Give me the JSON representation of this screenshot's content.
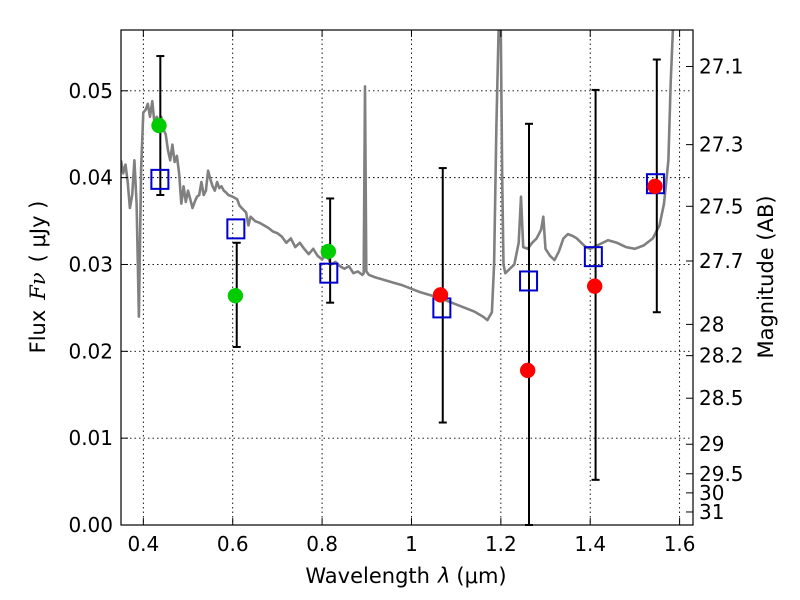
{
  "chart_data": {
    "type": "scatter",
    "title": "",
    "xlabel": "Wavelength",
    "xlabel_symbol": "λ",
    "xlabel_unit": "(μm)",
    "ylabel": "Flux",
    "ylabel_symbol": "Fν",
    "ylabel_unit": "( μJy )",
    "y2label": "Magnitude (AB)",
    "xlim": [
      0.35,
      1.63
    ],
    "ylim": [
      0.0,
      0.057
    ],
    "grid": true,
    "xticks": [
      0.4,
      0.6,
      0.8,
      1.0,
      1.2,
      1.4,
      1.6
    ],
    "xtick_labels": [
      "0.4",
      "0.6",
      "0.8",
      "1",
      "1.2",
      "1.4",
      "1.6"
    ],
    "yticks": [
      0.0,
      0.01,
      0.02,
      0.03,
      0.04,
      0.05
    ],
    "ytick_labels": [
      "0.00",
      "0.01",
      "0.02",
      "0.03",
      "0.04",
      "0.05"
    ],
    "y2ticks": [
      {
        "label": "27.1",
        "flux": 0.0528
      },
      {
        "label": "27.3",
        "flux": 0.0438
      },
      {
        "label": "27.5",
        "flux": 0.0367
      },
      {
        "label": "27.7",
        "flux": 0.0304
      },
      {
        "label": "28",
        "flux": 0.0231
      },
      {
        "label": "28.2",
        "flux": 0.0195
      },
      {
        "label": "28.5",
        "flux": 0.0146
      },
      {
        "label": "29",
        "flux": 0.0093
      },
      {
        "label": "29.5",
        "flux": 0.0059
      },
      {
        "label": "30",
        "flux": 0.0037
      },
      {
        "label": "31",
        "flux": 0.0015
      }
    ],
    "series": [
      {
        "name": "observed-optical",
        "marker": "circle",
        "color": "#00cc00",
        "points": [
          {
            "x": 0.435,
            "y": 0.046
          },
          {
            "x": 0.606,
            "y": 0.0264
          },
          {
            "x": 0.814,
            "y": 0.0315
          }
        ]
      },
      {
        "name": "observed-nir",
        "marker": "circle",
        "color": "#ff0000",
        "points": [
          {
            "x": 1.065,
            "y": 0.0265
          },
          {
            "x": 1.26,
            "y": 0.0178
          },
          {
            "x": 1.41,
            "y": 0.0275
          },
          {
            "x": 1.545,
            "y": 0.039
          }
        ]
      },
      {
        "name": "model-bandpass",
        "marker": "square-open",
        "color": "#0000cc",
        "points": [
          {
            "x": 0.437,
            "y": 0.0398
          },
          {
            "x": 0.607,
            "y": 0.0341
          },
          {
            "x": 0.815,
            "y": 0.029
          },
          {
            "x": 1.068,
            "y": 0.025
          },
          {
            "x": 1.262,
            "y": 0.0281
          },
          {
            "x": 1.407,
            "y": 0.0309
          },
          {
            "x": 1.546,
            "y": 0.0393
          }
        ]
      },
      {
        "name": "error-bars",
        "color": "#000000",
        "bars": [
          {
            "x": 0.438,
            "low": 0.038,
            "high": 0.054
          },
          {
            "x": 0.609,
            "low": 0.0205,
            "high": 0.0325
          },
          {
            "x": 0.818,
            "low": 0.0256,
            "high": 0.0376
          },
          {
            "x": 1.07,
            "low": 0.0118,
            "high": 0.0411
          },
          {
            "x": 1.263,
            "low": 0.0,
            "high": 0.0462
          },
          {
            "x": 1.412,
            "low": 0.0052,
            "high": 0.0501
          },
          {
            "x": 1.549,
            "low": 0.0245,
            "high": 0.0536
          }
        ]
      },
      {
        "name": "model-spectrum",
        "type": "line",
        "color": "#808080",
        "points": [
          [
            0.35,
            0.042
          ],
          [
            0.355,
            0.0405
          ],
          [
            0.36,
            0.0415
          ],
          [
            0.365,
            0.0395
          ],
          [
            0.37,
            0.0365
          ],
          [
            0.375,
            0.038
          ],
          [
            0.38,
            0.042
          ],
          [
            0.385,
            0.037
          ],
          [
            0.39,
            0.024
          ],
          [
            0.395,
            0.041
          ],
          [
            0.4,
            0.0475
          ],
          [
            0.405,
            0.0478
          ],
          [
            0.41,
            0.0485
          ],
          [
            0.415,
            0.047
          ],
          [
            0.42,
            0.0488
          ],
          [
            0.425,
            0.0462
          ],
          [
            0.43,
            0.047
          ],
          [
            0.435,
            0.0462
          ],
          [
            0.44,
            0.047
          ],
          [
            0.445,
            0.0455
          ],
          [
            0.45,
            0.045
          ],
          [
            0.455,
            0.0432
          ],
          [
            0.46,
            0.042
          ],
          [
            0.465,
            0.0438
          ],
          [
            0.47,
            0.0418
          ],
          [
            0.475,
            0.0425
          ],
          [
            0.48,
            0.0405
          ],
          [
            0.485,
            0.037
          ],
          [
            0.49,
            0.039
          ],
          [
            0.495,
            0.0372
          ],
          [
            0.5,
            0.0385
          ],
          [
            0.505,
            0.0375
          ],
          [
            0.51,
            0.0365
          ],
          [
            0.515,
            0.0372
          ],
          [
            0.52,
            0.0378
          ],
          [
            0.525,
            0.038
          ],
          [
            0.53,
            0.0395
          ],
          [
            0.535,
            0.038
          ],
          [
            0.54,
            0.0385
          ],
          [
            0.545,
            0.0408
          ],
          [
            0.55,
            0.0398
          ],
          [
            0.555,
            0.039
          ],
          [
            0.56,
            0.0385
          ],
          [
            0.565,
            0.0395
          ],
          [
            0.57,
            0.0388
          ],
          [
            0.575,
            0.039
          ],
          [
            0.58,
            0.0385
          ],
          [
            0.585,
            0.0383
          ],
          [
            0.59,
            0.038
          ],
          [
            0.6,
            0.0378
          ],
          [
            0.61,
            0.0375
          ],
          [
            0.615,
            0.0368
          ],
          [
            0.62,
            0.0365
          ],
          [
            0.63,
            0.036
          ],
          [
            0.635,
            0.0345
          ],
          [
            0.64,
            0.0355
          ],
          [
            0.65,
            0.035
          ],
          [
            0.66,
            0.0348
          ],
          [
            0.67,
            0.0345
          ],
          [
            0.68,
            0.0342
          ],
          [
            0.69,
            0.0338
          ],
          [
            0.7,
            0.0336
          ],
          [
            0.71,
            0.0332
          ],
          [
            0.72,
            0.0325
          ],
          [
            0.73,
            0.033
          ],
          [
            0.74,
            0.032
          ],
          [
            0.75,
            0.0325
          ],
          [
            0.76,
            0.0318
          ],
          [
            0.77,
            0.0312
          ],
          [
            0.78,
            0.0318
          ],
          [
            0.79,
            0.031
          ],
          [
            0.8,
            0.0306
          ],
          [
            0.81,
            0.0312
          ],
          [
            0.82,
            0.03
          ],
          [
            0.83,
            0.0303
          ],
          [
            0.84,
            0.0298
          ],
          [
            0.85,
            0.0295
          ],
          [
            0.86,
            0.0298
          ],
          [
            0.87,
            0.029
          ],
          [
            0.88,
            0.0292
          ],
          [
            0.89,
            0.0288
          ],
          [
            0.893,
            0.029
          ],
          [
            0.896,
            0.0505
          ],
          [
            0.899,
            0.0292
          ],
          [
            0.905,
            0.0288
          ],
          [
            0.92,
            0.0285
          ],
          [
            0.94,
            0.0282
          ],
          [
            0.96,
            0.0279
          ],
          [
            0.98,
            0.0276
          ],
          [
            1.0,
            0.0272
          ],
          [
            1.02,
            0.0268
          ],
          [
            1.04,
            0.0265
          ],
          [
            1.06,
            0.0262
          ],
          [
            1.08,
            0.0258
          ],
          [
            1.1,
            0.0254
          ],
          [
            1.12,
            0.025
          ],
          [
            1.14,
            0.0246
          ],
          [
            1.16,
            0.024
          ],
          [
            1.17,
            0.0236
          ],
          [
            1.18,
            0.0245
          ],
          [
            1.185,
            0.03
          ],
          [
            1.19,
            0.046
          ],
          [
            1.195,
            0.057
          ],
          [
            1.2,
            0.057
          ],
          [
            1.203,
            0.04
          ],
          [
            1.206,
            0.03
          ],
          [
            1.21,
            0.029
          ],
          [
            1.22,
            0.0295
          ],
          [
            1.23,
            0.03
          ],
          [
            1.24,
            0.0325
          ],
          [
            1.245,
            0.0378
          ],
          [
            1.25,
            0.032
          ],
          [
            1.26,
            0.0318
          ],
          [
            1.27,
            0.0325
          ],
          [
            1.28,
            0.033
          ],
          [
            1.29,
            0.034
          ],
          [
            1.295,
            0.0355
          ],
          [
            1.3,
            0.0318
          ],
          [
            1.31,
            0.031
          ],
          [
            1.32,
            0.0305
          ],
          [
            1.33,
            0.0315
          ],
          [
            1.34,
            0.033
          ],
          [
            1.35,
            0.0335
          ],
          [
            1.36,
            0.0333
          ],
          [
            1.37,
            0.033
          ],
          [
            1.38,
            0.0325
          ],
          [
            1.39,
            0.032
          ],
          [
            1.4,
            0.0318
          ],
          [
            1.42,
            0.0323
          ],
          [
            1.44,
            0.0328
          ],
          [
            1.46,
            0.0325
          ],
          [
            1.48,
            0.032
          ],
          [
            1.5,
            0.0318
          ],
          [
            1.52,
            0.0322
          ],
          [
            1.54,
            0.033
          ],
          [
            1.555,
            0.0345
          ],
          [
            1.565,
            0.037
          ],
          [
            1.575,
            0.042
          ],
          [
            1.58,
            0.051
          ],
          [
            1.585,
            0.057
          ]
        ]
      }
    ]
  }
}
